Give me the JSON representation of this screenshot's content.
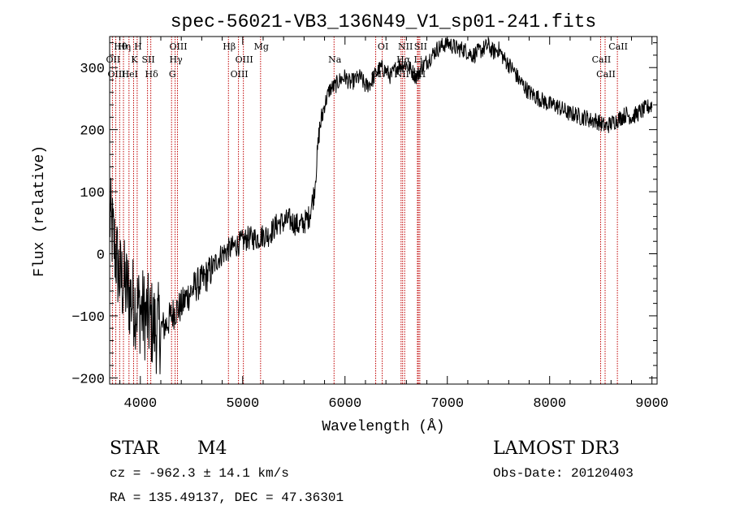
{
  "chart_data": {
    "type": "line",
    "title": "spec-56021-VB3_136N49_V1_sp01-241.fits",
    "xlabel": "Wavelength (Å)",
    "ylabel": "Flux (relative)",
    "xlim": [
      3700,
      9050
    ],
    "ylim": [
      -210,
      350
    ],
    "x_ticks": [
      4000,
      5000,
      6000,
      7000,
      8000,
      9000
    ],
    "y_ticks": [
      -200,
      -100,
      0,
      100,
      200,
      300
    ],
    "grid": false,
    "series": [
      {
        "name": "flux",
        "color": "#000000",
        "x": [
          3700,
          3750,
          3800,
          3850,
          3900,
          3950,
          4000,
          4050,
          4100,
          4150,
          4200,
          4250,
          4300,
          4350,
          4400,
          4450,
          4500,
          4550,
          4600,
          4650,
          4700,
          4750,
          4800,
          4850,
          4900,
          4950,
          5000,
          5050,
          5100,
          5150,
          5200,
          5250,
          5300,
          5350,
          5400,
          5450,
          5500,
          5550,
          5600,
          5650,
          5700,
          5750,
          5800,
          5850,
          5900,
          5950,
          6000,
          6050,
          6100,
          6150,
          6200,
          6250,
          6300,
          6350,
          6400,
          6450,
          6500,
          6550,
          6600,
          6650,
          6700,
          6750,
          6800,
          6850,
          6900,
          6950,
          7000,
          7050,
          7100,
          7150,
          7200,
          7250,
          7300,
          7350,
          7400,
          7450,
          7500,
          7550,
          7600,
          7650,
          7700,
          7750,
          7800,
          7850,
          7900,
          7950,
          8000,
          8050,
          8100,
          8150,
          8200,
          8250,
          8300,
          8350,
          8400,
          8450,
          8500,
          8550,
          8600,
          8650,
          8700,
          8750,
          8800,
          8850,
          8900,
          8950,
          9000
        ],
        "y": [
          60,
          10,
          -40,
          -50,
          -70,
          -80,
          -90,
          -100,
          -110,
          -120,
          -120,
          -115,
          -100,
          -90,
          -85,
          -70,
          -60,
          -50,
          -45,
          -35,
          -25,
          -10,
          0,
          5,
          10,
          15,
          20,
          25,
          25,
          25,
          30,
          30,
          40,
          50,
          50,
          55,
          50,
          45,
          50,
          60,
          100,
          200,
          240,
          265,
          270,
          280,
          285,
          275,
          280,
          285,
          270,
          275,
          290,
          300,
          295,
          285,
          300,
          305,
          305,
          295,
          285,
          300,
          310,
          320,
          330,
          335,
          340,
          335,
          330,
          330,
          325,
          320,
          325,
          330,
          335,
          325,
          330,
          315,
          305,
          295,
          280,
          270,
          260,
          255,
          250,
          245,
          240,
          240,
          235,
          230,
          225,
          225,
          220,
          220,
          215,
          215,
          210,
          205,
          210,
          215,
          220,
          225,
          220,
          225,
          230,
          235,
          240
        ]
      }
    ],
    "line_markers": [
      {
        "label": "Hθ",
        "wavelength": 3798
      },
      {
        "label": "OII",
        "wavelength": 3727
      },
      {
        "label": "OIII",
        "wavelength": 3760
      },
      {
        "label": "Hη",
        "wavelength": 3835
      },
      {
        "label": "K",
        "wavelength": 3934
      },
      {
        "label": "HeI",
        "wavelength": 3889
      },
      {
        "label": "H",
        "wavelength": 3969
      },
      {
        "label": "SII",
        "wavelength": 4070
      },
      {
        "label": "Hδ",
        "wavelength": 4102
      },
      {
        "label": "OIII",
        "wavelength": 4363
      },
      {
        "label": "Hγ",
        "wavelength": 4340
      },
      {
        "label": "G",
        "wavelength": 4305
      },
      {
        "label": "Hβ",
        "wavelength": 4861
      },
      {
        "label": "OIII",
        "wavelength": 5007
      },
      {
        "label": "OIII",
        "wavelength": 4959
      },
      {
        "label": "Mg",
        "wavelength": 5175
      },
      {
        "label": "Na",
        "wavelength": 5893
      },
      {
        "label": "OI",
        "wavelength": 6300
      },
      {
        "label": "OI",
        "wavelength": 6364
      },
      {
        "label": "Hα",
        "wavelength": 6563
      },
      {
        "label": "SII",
        "wavelength": 6717
      },
      {
        "label": "NII",
        "wavelength": 6583
      },
      {
        "label": "Li",
        "wavelength": 6708
      },
      {
        "label": "NII",
        "wavelength": 6548
      },
      {
        "label": "SII",
        "wavelength": 6731
      },
      {
        "label": "CaII",
        "wavelength": 8498
      },
      {
        "label": "CaII",
        "wavelength": 8542
      },
      {
        "label": "CaII",
        "wavelength": 8662
      }
    ]
  },
  "info": {
    "object_class": "STAR",
    "subclass": "M4",
    "survey": "LAMOST DR3",
    "cz_line": "cz = -962.3 ± 14.1 km/s",
    "obs_date": "Obs-Date: 20120403",
    "coords": "RA = 135.49137, DEC =  47.36301"
  },
  "colors": {
    "spectrum": "#000000",
    "marker_line": "#c00000",
    "axis": "#000000"
  }
}
